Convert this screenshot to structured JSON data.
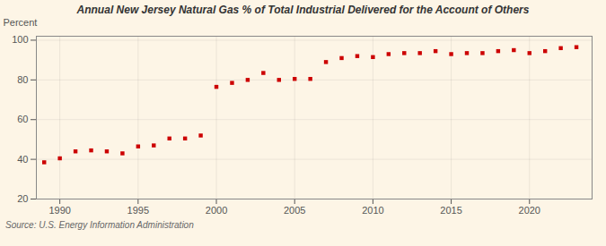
{
  "chart_data": {
    "type": "scatter",
    "title": "Annual New Jersey Natural Gas % of Total Industrial Delivered for the Account of Others",
    "ylabel": "Percent",
    "source": "Source: U.S. Energy Information Administration",
    "x": [
      1989,
      1990,
      1991,
      1992,
      1993,
      1994,
      1995,
      1996,
      1997,
      1998,
      1999,
      2000,
      2001,
      2002,
      2003,
      2004,
      2005,
      2006,
      2007,
      2008,
      2009,
      2010,
      2011,
      2012,
      2013,
      2014,
      2015,
      2016,
      2017,
      2018,
      2019,
      2020,
      2021,
      2022,
      2023
    ],
    "values": [
      38.5,
      40.5,
      44.0,
      44.5,
      44.0,
      43.0,
      46.5,
      47.0,
      50.5,
      50.5,
      52.0,
      76.5,
      78.5,
      80.0,
      83.5,
      80.0,
      80.5,
      80.5,
      89.0,
      91.0,
      92.0,
      91.5,
      93.0,
      93.5,
      93.5,
      94.5,
      93.0,
      93.5,
      93.5,
      94.5,
      95.0,
      93.5,
      94.5,
      96.0,
      96.5
    ],
    "color": "#cc0000",
    "marker": "square",
    "xlim": [
      1988.5,
      2024
    ],
    "ylim": [
      20,
      102
    ],
    "xticks": [
      1990,
      1995,
      2000,
      2005,
      2010,
      2015,
      2020
    ],
    "yticks": [
      20,
      40,
      60,
      80,
      100
    ],
    "grid": true
  }
}
